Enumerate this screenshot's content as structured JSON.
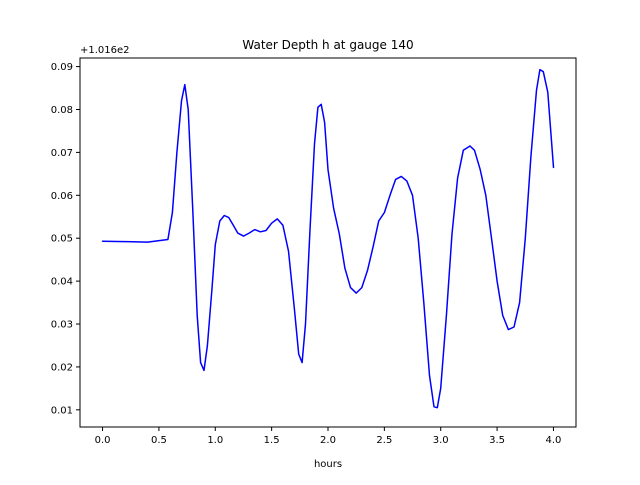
{
  "chart_data": {
    "type": "line",
    "title": "Water Depth h at gauge 140",
    "xlabel": "hours",
    "ylabel": "",
    "y_offset_label": "+1.016e2",
    "xlim": [
      -0.2,
      4.2
    ],
    "ylim": [
      0.006,
      0.092
    ],
    "xticks": [
      0.0,
      0.5,
      1.0,
      1.5,
      2.0,
      2.5,
      3.0,
      3.5,
      4.0
    ],
    "xtick_labels": [
      "0.0",
      "0.5",
      "1.0",
      "1.5",
      "2.0",
      "2.5",
      "3.0",
      "3.5",
      "4.0"
    ],
    "yticks": [
      0.01,
      0.02,
      0.03,
      0.04,
      0.05,
      0.06,
      0.07,
      0.08,
      0.09
    ],
    "ytick_labels": [
      "0.01",
      "0.02",
      "0.03",
      "0.04",
      "0.05",
      "0.06",
      "0.07",
      "0.08",
      "0.09"
    ],
    "grid": false,
    "series": [
      {
        "color": "#0000ff",
        "x": [
          0.0,
          0.2,
          0.4,
          0.58,
          0.62,
          0.66,
          0.7,
          0.73,
          0.76,
          0.8,
          0.84,
          0.87,
          0.9,
          0.93,
          0.97,
          1.0,
          1.04,
          1.08,
          1.12,
          1.16,
          1.2,
          1.25,
          1.3,
          1.35,
          1.4,
          1.45,
          1.5,
          1.55,
          1.6,
          1.65,
          1.7,
          1.74,
          1.77,
          1.8,
          1.84,
          1.88,
          1.91,
          1.94,
          1.97,
          2.0,
          2.05,
          2.1,
          2.15,
          2.2,
          2.25,
          2.3,
          2.35,
          2.4,
          2.45,
          2.5,
          2.55,
          2.6,
          2.65,
          2.7,
          2.75,
          2.8,
          2.85,
          2.9,
          2.94,
          2.97,
          3.0,
          3.05,
          3.1,
          3.15,
          3.2,
          3.26,
          3.3,
          3.35,
          3.4,
          3.45,
          3.5,
          3.55,
          3.6,
          3.65,
          3.7,
          3.75,
          3.8,
          3.85,
          3.88,
          3.91,
          3.95,
          4.0
        ],
        "y": [
          0.0493,
          0.0492,
          0.0491,
          0.0497,
          0.056,
          0.07,
          0.082,
          0.0858,
          0.08,
          0.057,
          0.032,
          0.021,
          0.0192,
          0.025,
          0.038,
          0.0485,
          0.054,
          0.0553,
          0.0548,
          0.053,
          0.0512,
          0.0505,
          0.0512,
          0.052,
          0.0515,
          0.0518,
          0.0535,
          0.0545,
          0.053,
          0.047,
          0.034,
          0.023,
          0.021,
          0.03,
          0.052,
          0.072,
          0.0805,
          0.0812,
          0.077,
          0.066,
          0.057,
          0.051,
          0.043,
          0.0385,
          0.0372,
          0.0385,
          0.0425,
          0.048,
          0.054,
          0.056,
          0.06,
          0.0637,
          0.0644,
          0.0633,
          0.06,
          0.05,
          0.035,
          0.018,
          0.0107,
          0.0105,
          0.015,
          0.032,
          0.051,
          0.064,
          0.0705,
          0.0715,
          0.0705,
          0.066,
          0.06,
          0.05,
          0.04,
          0.032,
          0.0287,
          0.0293,
          0.035,
          0.05,
          0.069,
          0.0845,
          0.0893,
          0.0888,
          0.084,
          0.0665
        ]
      }
    ]
  }
}
